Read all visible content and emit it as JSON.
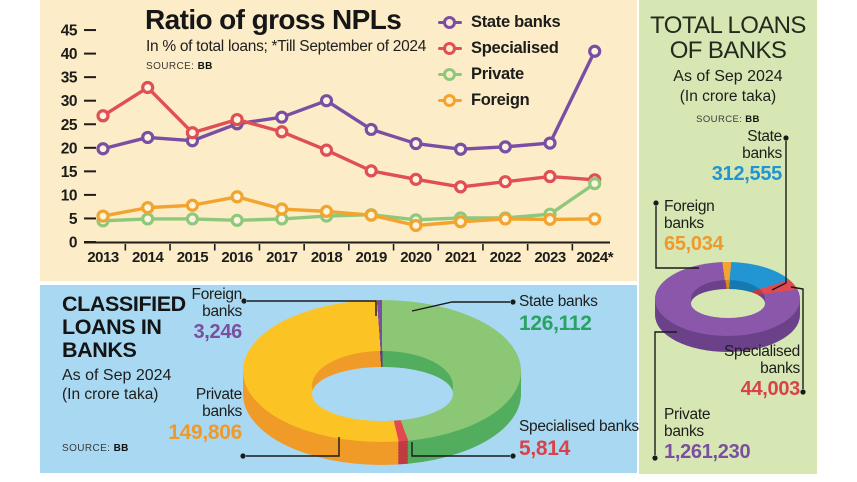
{
  "npl_panel": {
    "title": "Ratio of gross NPLs",
    "subtitle": "In % of total loans; *Till September of 2024",
    "source_label": "SOURCE:",
    "source_value": "BB",
    "legend": [
      {
        "label": "State banks",
        "color": "#7a4fa3"
      },
      {
        "label": "Specialised",
        "color": "#e04f54"
      },
      {
        "label": "Private",
        "color": "#8fc87c"
      },
      {
        "label": "Foreign",
        "color": "#f2a42e"
      }
    ]
  },
  "classified_panel": {
    "title": "CLASSIFIED\nLOANS IN\nBANKS",
    "date": "As of Sep 2024",
    "unit": "(In crore taka)",
    "source_label": "SOURCE:",
    "source_value": "BB",
    "callouts": {
      "foreign": {
        "name": "Foreign\nbanks",
        "value": "3,246",
        "color": "#7b4fa0"
      },
      "state": {
        "name": "State banks",
        "value": "126,112",
        "color": "#28a363"
      },
      "private": {
        "name": "Private\nbanks",
        "value": "149,806",
        "color": "#f0992b"
      },
      "specialised": {
        "name": "Specialised banks",
        "value": "5,814",
        "color": "#d8434b"
      }
    }
  },
  "total_panel": {
    "title": "TOTAL LOANS\nOF BANKS",
    "date": "As of Sep 2024",
    "unit": "(In crore taka)",
    "source_label": "SOURCE:",
    "source_value": "BB",
    "callouts": {
      "state": {
        "name": "State\nbanks",
        "value": "312,555",
        "color": "#2095d2"
      },
      "foreign": {
        "name": "Foreign\nbanks",
        "value": "65,034",
        "color": "#f0992b"
      },
      "specialised": {
        "name": "Specialised\nbanks",
        "value": "44,003",
        "color": "#d8434b"
      },
      "private": {
        "name": "Private\nbanks",
        "value": "1,261,230",
        "color": "#7b4fa0"
      }
    }
  },
  "chart_data": [
    {
      "type": "line",
      "title": "Ratio of gross NPLs",
      "subtitle": "In % of total loans; *Till September of 2024",
      "source": "SOURCE: BB",
      "x": [
        "2013",
        "2014",
        "2015",
        "2016",
        "2017",
        "2018",
        "2019",
        "2020",
        "2021",
        "2022",
        "2023",
        "2024*"
      ],
      "ylabel": "% of total loans",
      "ylim": [
        0,
        45
      ],
      "yticks": [
        0,
        5,
        10,
        15,
        20,
        25,
        30,
        35,
        40,
        45
      ],
      "grid": false,
      "legend_position": "top-right",
      "series": [
        {
          "name": "State banks",
          "color": "#7a4fa3",
          "values": [
            19.8,
            22.2,
            21.5,
            25.1,
            26.5,
            30.0,
            23.9,
            20.9,
            19.7,
            20.2,
            21.0,
            40.5
          ]
        },
        {
          "name": "Specialised",
          "color": "#e04f54",
          "values": [
            26.8,
            32.8,
            23.2,
            26.0,
            23.4,
            19.5,
            15.1,
            13.3,
            11.7,
            12.8,
            13.9,
            13.2
          ]
        },
        {
          "name": "Private",
          "color": "#8fc87c",
          "values": [
            4.5,
            4.9,
            4.9,
            4.6,
            4.9,
            5.5,
            5.8,
            4.7,
            5.1,
            5.1,
            5.9,
            12.4
          ]
        },
        {
          "name": "Foreign",
          "color": "#f2a42e",
          "values": [
            5.5,
            7.3,
            7.8,
            9.6,
            7.0,
            6.5,
            5.7,
            3.5,
            4.3,
            4.9,
            4.8,
            4.9
          ]
        }
      ]
    },
    {
      "type": "pie",
      "title": "CLASSIFIED LOANS IN BANKS",
      "subtitle": "As of Sep 2024 (In crore taka)",
      "source": "SOURCE: BB",
      "start_deg": 0,
      "slices": [
        {
          "label": "State banks",
          "value": 126112,
          "display": "126,112",
          "color": "#8cc776",
          "side": "#53ad5f"
        },
        {
          "label": "Specialised banks",
          "value": 5814,
          "display": "5,814",
          "color": "#e04a50",
          "side": "#bf3a41"
        },
        {
          "label": "Private banks",
          "value": 149806,
          "display": "149,806",
          "color": "#fbc324",
          "side": "#f09a28"
        },
        {
          "label": "Foreign banks",
          "value": 3246,
          "display": "3,246",
          "color": "#7b4fa0",
          "side": "#5e3c7e"
        }
      ]
    },
    {
      "type": "pie",
      "title": "TOTAL LOANS OF BANKS",
      "subtitle": "As of Sep 2024 (In crore taka)",
      "source": "SOURCE: BB",
      "start_deg": -8,
      "slices": [
        {
          "label": "Foreign banks",
          "value": 65034,
          "display": "65,034",
          "color": "#f2a42e",
          "side": "#d8891f"
        },
        {
          "label": "State banks",
          "value": 312555,
          "display": "312,555",
          "color": "#2196d3",
          "side": "#1779b0"
        },
        {
          "label": "Specialised banks",
          "value": 44003,
          "display": "44,003",
          "color": "#e04a50",
          "side": "#bf3a41"
        },
        {
          "label": "Private banks",
          "value": 1261230,
          "display": "1,261,230",
          "color": "#8a57ab",
          "side": "#6b4189"
        }
      ]
    }
  ]
}
